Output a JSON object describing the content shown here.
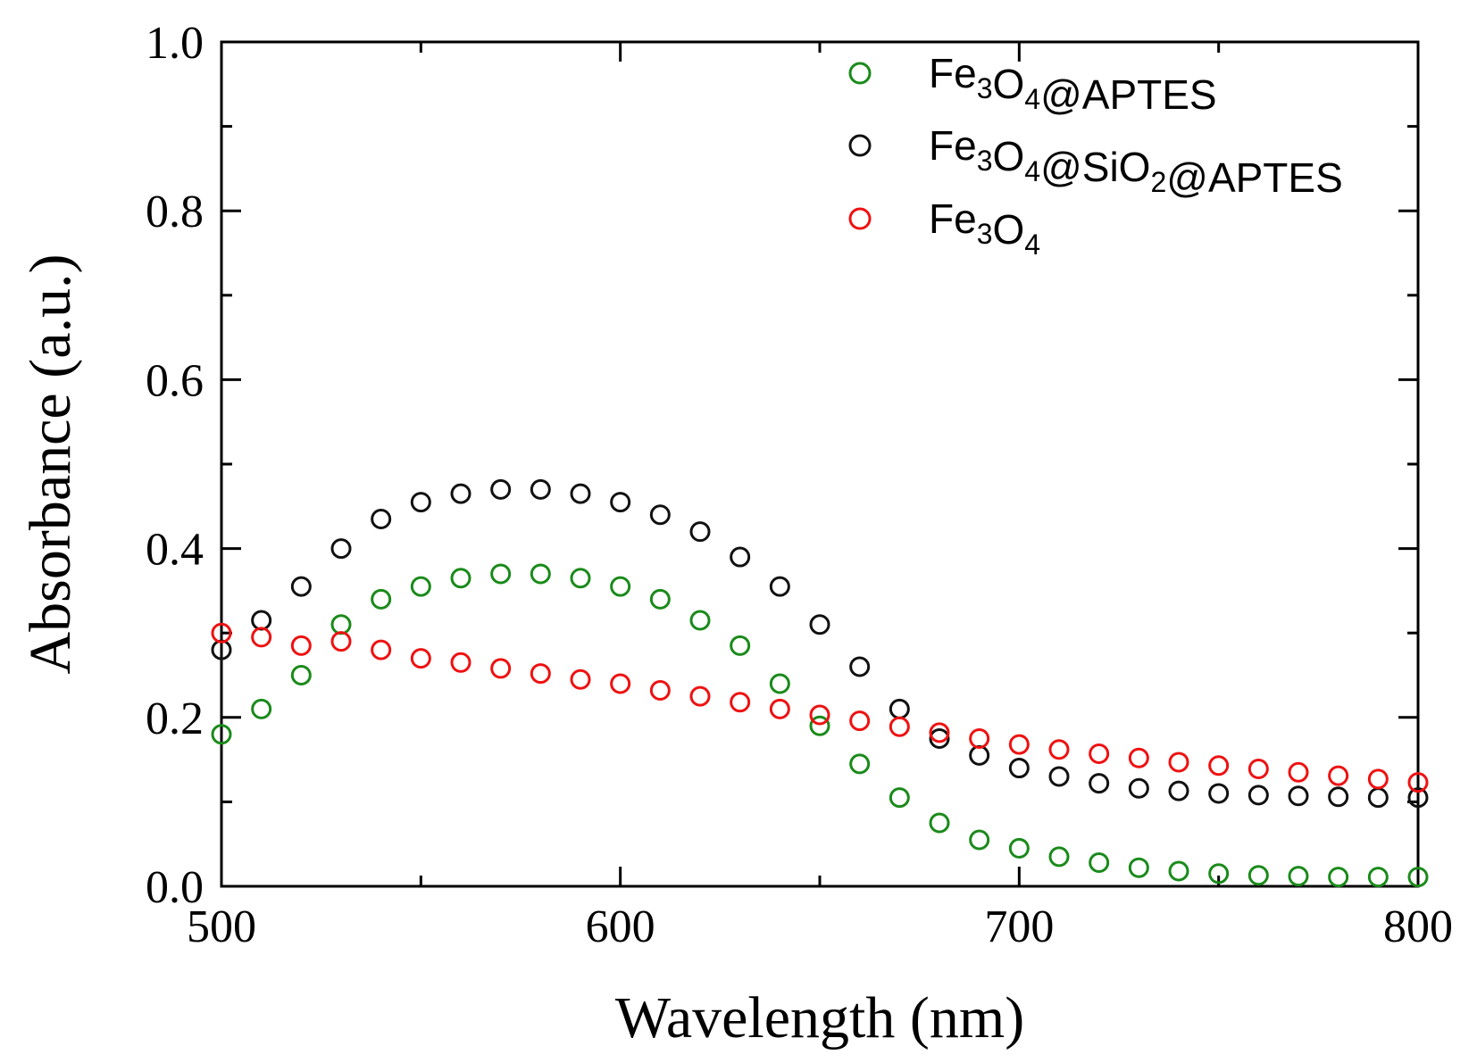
{
  "chart_data": {
    "type": "scatter",
    "title": "",
    "xlabel": "Wavelength (nm)",
    "ylabel": "Absorbance (a.u.)",
    "xlim": [
      500,
      800
    ],
    "ylim": [
      0.0,
      1.0
    ],
    "xticks": [
      "500",
      "600",
      "700",
      "800"
    ],
    "yticks": [
      "0.0",
      "0.2",
      "0.4",
      "0.6",
      "0.8",
      "1.0"
    ],
    "marker": "open-circle",
    "legend_position": "top-right",
    "series": [
      {
        "name": "Fe3O4@APTES",
        "label_parts": [
          [
            "Fe",
            ""
          ],
          [
            "3",
            "sub"
          ],
          [
            "O",
            ""
          ],
          [
            "4",
            "sub"
          ],
          [
            "@APTES",
            ""
          ]
        ],
        "color": "#1a8a1a",
        "x": [
          500,
          510,
          520,
          530,
          540,
          550,
          560,
          570,
          580,
          590,
          600,
          610,
          620,
          630,
          640,
          650,
          660,
          670,
          680,
          690,
          700,
          710,
          720,
          730,
          740,
          750,
          760,
          770,
          780,
          790,
          800
        ],
        "y": [
          0.18,
          0.21,
          0.25,
          0.31,
          0.34,
          0.355,
          0.365,
          0.37,
          0.37,
          0.365,
          0.355,
          0.34,
          0.315,
          0.285,
          0.24,
          0.19,
          0.145,
          0.105,
          0.075,
          0.055,
          0.045,
          0.035,
          0.028,
          0.022,
          0.018,
          0.015,
          0.013,
          0.012,
          0.011,
          0.011,
          0.011
        ]
      },
      {
        "name": "Fe3O4@SiO2@APTES",
        "label_parts": [
          [
            "Fe",
            ""
          ],
          [
            "3",
            "sub"
          ],
          [
            "O",
            ""
          ],
          [
            "4",
            "sub"
          ],
          [
            "@SiO",
            ""
          ],
          [
            "2",
            "sub"
          ],
          [
            "@APTES",
            ""
          ]
        ],
        "color": "#111111",
        "x": [
          500,
          510,
          520,
          530,
          540,
          550,
          560,
          570,
          580,
          590,
          600,
          610,
          620,
          630,
          640,
          650,
          660,
          670,
          680,
          690,
          700,
          710,
          720,
          730,
          740,
          750,
          760,
          770,
          780,
          790,
          800
        ],
        "y": [
          0.28,
          0.315,
          0.355,
          0.4,
          0.435,
          0.455,
          0.465,
          0.47,
          0.47,
          0.465,
          0.455,
          0.44,
          0.42,
          0.39,
          0.355,
          0.31,
          0.26,
          0.21,
          0.175,
          0.155,
          0.14,
          0.13,
          0.122,
          0.116,
          0.113,
          0.11,
          0.108,
          0.107,
          0.106,
          0.105,
          0.105
        ]
      },
      {
        "name": "Fe3O4",
        "label_parts": [
          [
            "Fe",
            ""
          ],
          [
            "3",
            "sub"
          ],
          [
            "O",
            ""
          ],
          [
            "4",
            "sub"
          ]
        ],
        "color": "#ee1111",
        "x": [
          500,
          510,
          520,
          530,
          540,
          550,
          560,
          570,
          580,
          590,
          600,
          610,
          620,
          630,
          640,
          650,
          660,
          670,
          680,
          690,
          700,
          710,
          720,
          730,
          740,
          750,
          760,
          770,
          780,
          790,
          800
        ],
        "y": [
          0.3,
          0.295,
          0.285,
          0.29,
          0.28,
          0.27,
          0.265,
          0.258,
          0.252,
          0.245,
          0.24,
          0.232,
          0.225,
          0.218,
          0.21,
          0.203,
          0.196,
          0.189,
          0.182,
          0.175,
          0.168,
          0.162,
          0.157,
          0.152,
          0.147,
          0.143,
          0.139,
          0.135,
          0.131,
          0.127,
          0.123
        ]
      }
    ]
  }
}
